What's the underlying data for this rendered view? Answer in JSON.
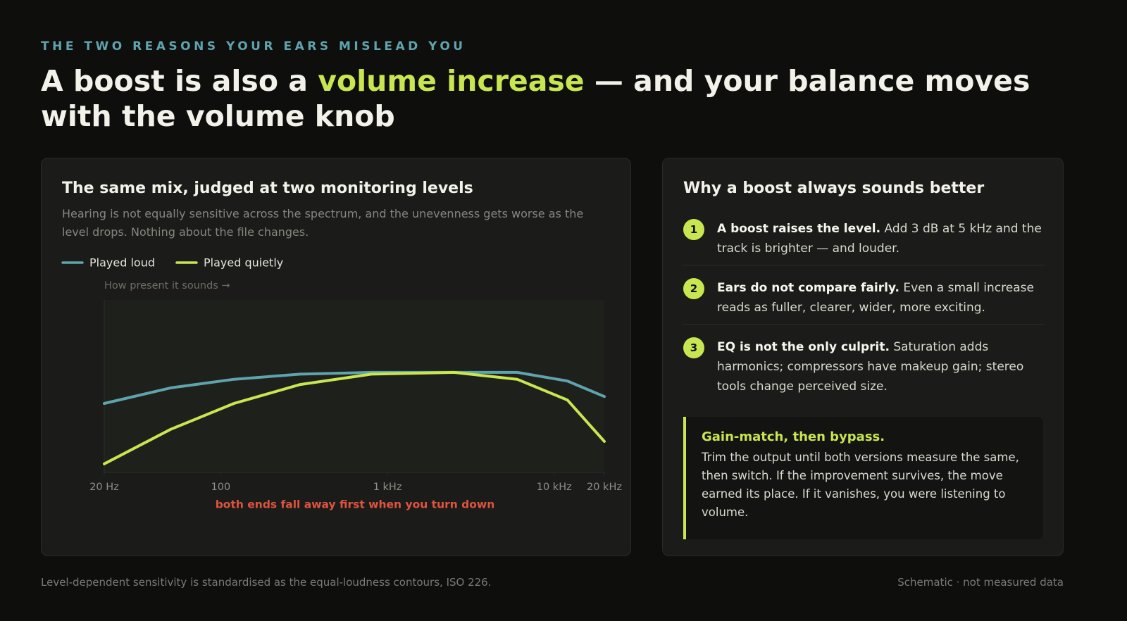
{
  "header": {
    "eyebrow": "THE TWO REASONS YOUR EARS MISLEAD YOU",
    "headline_before": "A boost is also a",
    "headline_highlight": "volume increase",
    "headline_after": "— and your balance moves with the volume knob"
  },
  "left_card": {
    "title": "The same mix, judged at two monitoring levels",
    "description": "Hearing is not equally sensitive across the spectrum, and the unevenness gets worse as the level drops. Nothing about the file changes."
  },
  "chart_data": {
    "type": "line",
    "y_label": "How present it sounds →",
    "annotation": "both ends fall away first when you turn down",
    "x": [
      20,
      50,
      120,
      300,
      800,
      2500,
      6000,
      12000,
      20000
    ],
    "xlim": [
      20,
      20000
    ],
    "xscale": "log",
    "xticks": [
      {
        "value": 20,
        "label": "20 Hz"
      },
      100,
      {
        "value": 1000,
        "label": "1 kHz"
      },
      {
        "value": 10000,
        "label": "10 kHz"
      },
      {
        "value": 20000,
        "label": "20 kHz"
      }
    ],
    "ylim": [
      0,
      100
    ],
    "series": [
      {
        "name": "Played loud",
        "color": "#5fa3ad",
        "values": [
          40,
          49,
          54,
          57,
          58,
          58,
          58,
          53,
          44
        ]
      },
      {
        "name": "Played quietly",
        "color": "#c8e650",
        "values": [
          5,
          25,
          40,
          51,
          57,
          58,
          54,
          42,
          18
        ]
      }
    ]
  },
  "right_card": {
    "title": "Why a boost always sounds better",
    "items": [
      {
        "number": "1",
        "bold": "A boost raises the level.",
        "text": "Add 3 dB at 5 kHz and the track is brighter — and louder."
      },
      {
        "number": "2",
        "bold": "Ears do not compare fairly.",
        "text": "Even a small increase reads as fuller, clearer, wider, more exciting."
      },
      {
        "number": "3",
        "bold": "EQ is not the only culprit.",
        "text": "Saturation adds harmonics; compressors have makeup gain; stereo tools change perceived size."
      }
    ],
    "callout": {
      "title": "Gain-match, then bypass.",
      "body": "Trim the output until both versions measure the same, then switch. If the improvement survives, the move earned its place. If it vanishes, you were listening to volume."
    }
  },
  "footer": {
    "left": "Level-dependent sensitivity is standardised as the equal-loudness contours, ISO 226.",
    "right": "Schematic · not measured data"
  }
}
